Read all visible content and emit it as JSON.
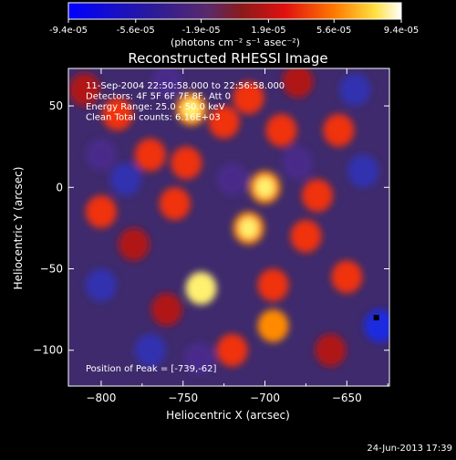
{
  "chart_data": {
    "type": "heatmap",
    "title": "Reconstructed RHESSI Image",
    "xlabel": "Heliocentric X (arcsec)",
    "ylabel": "Heliocentric Y (arcsec)",
    "xlim": [
      -820,
      -624
    ],
    "ylim": [
      -122,
      73
    ],
    "xticks": [
      -800,
      -750,
      -700,
      -650
    ],
    "yticks": [
      50,
      0,
      -50,
      -100
    ],
    "colorbar": {
      "ticks": [
        -9.4e-05,
        -5.6e-05,
        -1.9e-05,
        1.9e-05,
        5.6e-05,
        9.4e-05
      ],
      "tick_labels": [
        "-9.4e-05",
        "-5.6e-05",
        "-1.9e-05",
        "1.9e-05",
        "5.6e-05",
        "9.4e-05"
      ],
      "unit_label": "(photons cm⁻² s⁻¹ asec⁻²)",
      "range": [
        -9.4e-05,
        9.4e-05
      ]
    },
    "info_lines": [
      "11-Sep-2004 22:50:58.000 to 22:56:58.000",
      "Detectors: 4F 5F 6F 7F 8F, Att 0",
      "Energy Range: 25.0 - 50.0 keV",
      "Clean    Total counts: 6.16E+03"
    ],
    "peak_label": "Position of Peak = [-739,-62]",
    "peak": [
      -739,
      -62
    ],
    "marker": [
      -632,
      -80
    ],
    "blobs": [
      {
        "x": -739,
        "y": -62,
        "v": 1.0
      },
      {
        "x": -745,
        "y": 48,
        "v": 0.75
      },
      {
        "x": -725,
        "y": 40,
        "v": 0.6
      },
      {
        "x": -790,
        "y": 45,
        "v": 0.55
      },
      {
        "x": -770,
        "y": 20,
        "v": 0.55
      },
      {
        "x": -800,
        "y": -15,
        "v": 0.5
      },
      {
        "x": -780,
        "y": -35,
        "v": 0.45
      },
      {
        "x": -755,
        "y": -10,
        "v": 0.6
      },
      {
        "x": -748,
        "y": 15,
        "v": 0.5
      },
      {
        "x": -710,
        "y": 55,
        "v": 0.6
      },
      {
        "x": -690,
        "y": 35,
        "v": 0.55
      },
      {
        "x": -700,
        "y": 0,
        "v": 0.75
      },
      {
        "x": -710,
        "y": -25,
        "v": 0.8
      },
      {
        "x": -695,
        "y": -60,
        "v": 0.5
      },
      {
        "x": -695,
        "y": -85,
        "v": 0.7
      },
      {
        "x": -675,
        "y": -30,
        "v": 0.6
      },
      {
        "x": -668,
        "y": -5,
        "v": 0.65
      },
      {
        "x": -655,
        "y": 35,
        "v": 0.55
      },
      {
        "x": -650,
        "y": -55,
        "v": 0.55
      },
      {
        "x": -660,
        "y": -100,
        "v": 0.45
      },
      {
        "x": -720,
        "y": -100,
        "v": 0.55
      },
      {
        "x": -760,
        "y": -75,
        "v": 0.45
      },
      {
        "x": -800,
        "y": -60,
        "v": -0.45
      },
      {
        "x": -770,
        "y": -100,
        "v": -0.5
      },
      {
        "x": -785,
        "y": 5,
        "v": -0.45
      },
      {
        "x": -800,
        "y": 20,
        "v": -0.4
      },
      {
        "x": -640,
        "y": 10,
        "v": -0.55
      },
      {
        "x": -630,
        "y": -85,
        "v": -0.8
      },
      {
        "x": -680,
        "y": 15,
        "v": -0.4
      },
      {
        "x": -740,
        "y": -105,
        "v": -0.35
      },
      {
        "x": -720,
        "y": 5,
        "v": -0.35
      },
      {
        "x": -760,
        "y": 65,
        "v": -0.3
      },
      {
        "x": -645,
        "y": 60,
        "v": -0.45
      },
      {
        "x": -680,
        "y": 65,
        "v": 0.35
      },
      {
        "x": -810,
        "y": 60,
        "v": 0.35
      }
    ]
  },
  "footer": {
    "date": "24-Jun-2013 17:39"
  },
  "colors": {
    "background": "#000000",
    "text": "#ffffff"
  }
}
